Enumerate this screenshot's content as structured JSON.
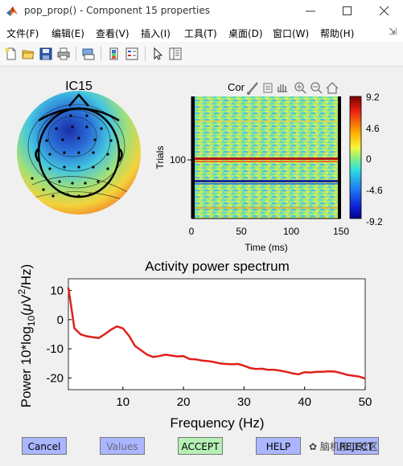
{
  "window": {
    "title": "pop_prop() - Component 15 properties"
  },
  "menu": {
    "items": [
      "文件(F)",
      "编辑(E)",
      "查看(V)",
      "插入(I)",
      "工具(T)",
      "桌面(D)",
      "窗口(W)",
      "帮助(H)"
    ]
  },
  "toolbar": {
    "icons": [
      "new-file-icon",
      "open-folder-icon",
      "save-icon",
      "print-icon",
      "print-preview-icon",
      "link-plot-icon",
      "insert-colorbar-icon",
      "pointer-icon",
      "plot-browser-icon"
    ]
  },
  "topomap": {
    "title": "IC15",
    "colors": {
      "blue": "#1a3fb5",
      "red": "#d9302a",
      "yellow": "#f2d23a",
      "cyan": "#3fc5d9"
    }
  },
  "erpimage": {
    "title_partial": "Cor",
    "ylabel": "Trials",
    "xlabel": "Time (ms)",
    "y_tick": "100",
    "x_ticks": [
      "0",
      "50",
      "100",
      "150"
    ],
    "colorbar_ticks": [
      "9.2",
      "4.6",
      "0",
      "-4.6",
      "-9.2"
    ]
  },
  "chart_data": {
    "type": "line",
    "title": "Activity power spectrum",
    "xlabel": "Frequency (Hz)",
    "ylabel_prefix": "Power 10*log",
    "ylabel_sub": "10",
    "ylabel_mid": "(",
    "ylabel_mu": "μ",
    "ylabel_v": "V",
    "ylabel_sup": "2",
    "ylabel_suffix": "/Hz)",
    "xlim": [
      1,
      50
    ],
    "ylim": [
      -24,
      14
    ],
    "x_ticks": [
      10,
      20,
      30,
      40,
      50
    ],
    "y_ticks": [
      10,
      0,
      -10,
      -20
    ],
    "x": [
      1,
      2,
      3,
      4,
      5,
      6,
      7,
      8,
      9,
      10,
      11,
      12,
      13,
      14,
      15,
      16,
      17,
      18,
      19,
      20,
      21,
      22,
      23,
      24,
      25,
      26,
      27,
      28,
      29,
      30,
      31,
      32,
      33,
      34,
      35,
      36,
      37,
      38,
      39,
      40,
      41,
      42,
      43,
      44,
      45,
      46,
      47,
      48,
      49,
      50
    ],
    "values": [
      11,
      -3,
      -5,
      -5.7,
      -6,
      -6.3,
      -5,
      -3.5,
      -2.3,
      -3,
      -5.5,
      -9,
      -10.5,
      -12,
      -12.8,
      -12.5,
      -12,
      -12.3,
      -12.6,
      -12.5,
      -13.5,
      -13.6,
      -14,
      -14.2,
      -14.5,
      -15,
      -15.2,
      -15.3,
      -15.2,
      -15.8,
      -16.6,
      -16.9,
      -16.8,
      -17.2,
      -17.2,
      -17.5,
      -17.9,
      -18.4,
      -18.7,
      -18,
      -18.1,
      -17.9,
      -17.9,
      -17.7,
      -17.8,
      -18.3,
      -18.9,
      -19.2,
      -19.5,
      -20.2
    ],
    "line_color": "#e0201b"
  },
  "buttons": {
    "cancel": "Cancel",
    "values": "Values",
    "accept": "ACCEPT",
    "help": "HELP",
    "reject": "REJECT"
  },
  "watermark": "脑机接口社区"
}
